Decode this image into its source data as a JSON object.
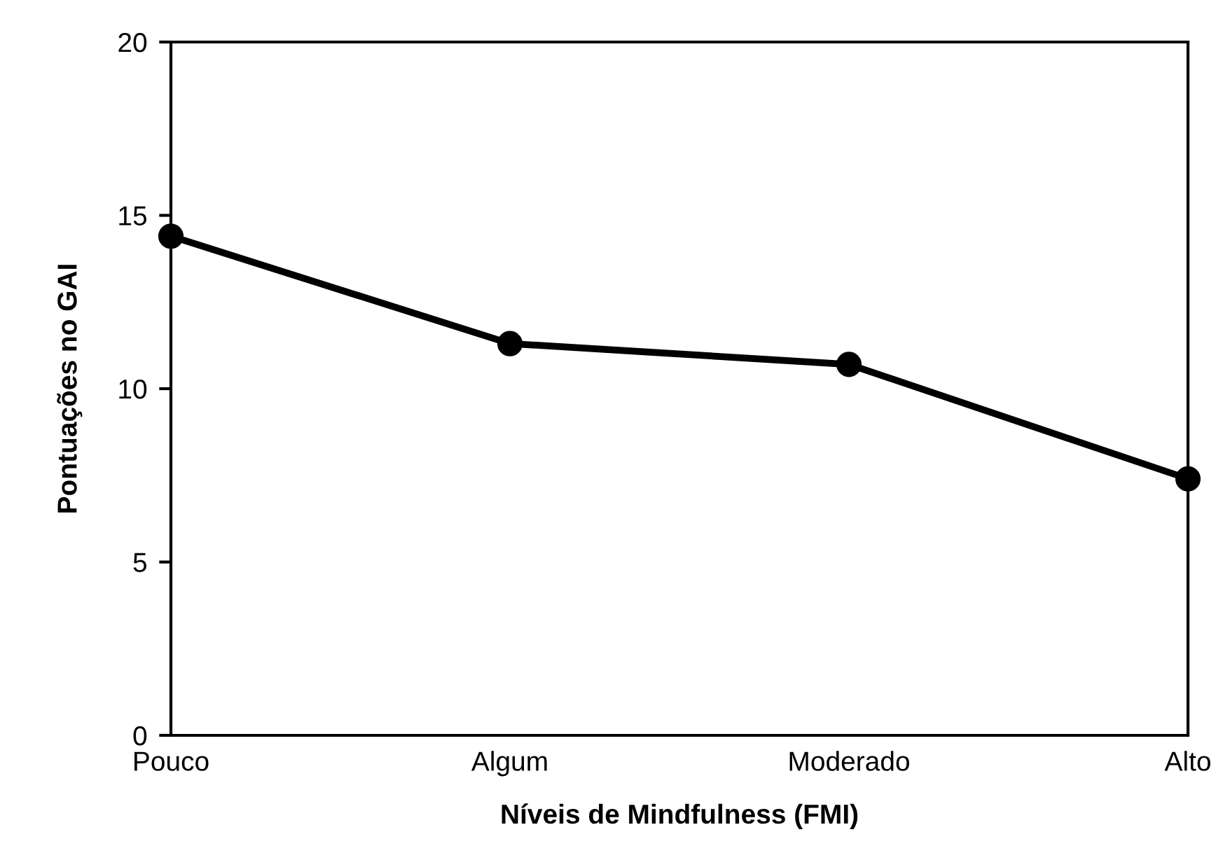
{
  "chart_data": {
    "type": "line",
    "xlabel": "Níveis de Mindfulness (FMI)",
    "ylabel": "Pontuações no GAI",
    "categories": [
      "Pouco",
      "Algum",
      "Moderado",
      "Alto"
    ],
    "series": [
      {
        "color": "#000000",
        "values": [
          14.4,
          11.3,
          10.7,
          7.4
        ]
      }
    ],
    "ylim": [
      0,
      20
    ],
    "yticks": [
      0,
      5,
      10,
      15,
      20
    ],
    "marker": "circle",
    "line_style": "solid",
    "grid": false,
    "legend": false
  }
}
